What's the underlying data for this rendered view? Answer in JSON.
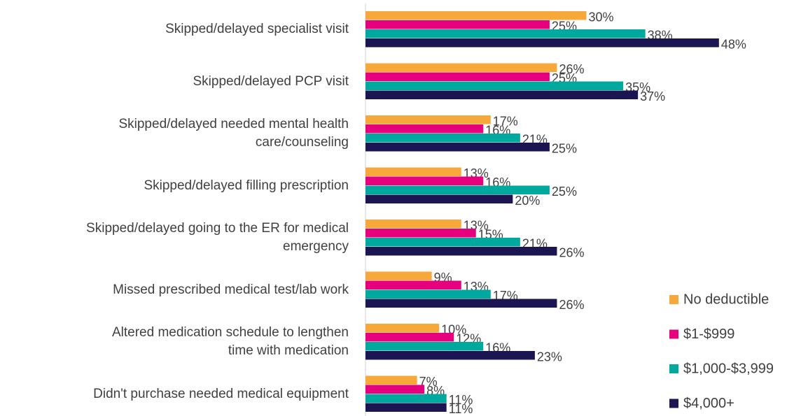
{
  "chart_data": {
    "type": "hbar",
    "categories": [
      "Skipped/delayed specialist visit",
      "Skipped/delayed PCP visit",
      "Skipped/delayed needed mental health\ncare/counseling",
      "Skipped/delayed filling prescription",
      "Skipped/delayed going to the ER for medical\nemergency",
      "Missed prescribed medical test/lab work",
      "Altered medication schedule to lengthen\ntime with medication",
      "Didn't purchase needed medical equipment"
    ],
    "series": [
      {
        "name": "No deductible",
        "color": "#f7a83b",
        "values": [
          30,
          26,
          17,
          13,
          13,
          9,
          10,
          7
        ],
        "value_labels": [
          "30%",
          "26%",
          "17%",
          "13%",
          "13%",
          "9%",
          "10%",
          "7%"
        ]
      },
      {
        "name": "$1-$999",
        "color": "#e6007e",
        "values": [
          25,
          25,
          16,
          16,
          15,
          13,
          12,
          8
        ],
        "value_labels": [
          "25%",
          "25%",
          "16%",
          "16%",
          "15%",
          "13%",
          "12%",
          "8%"
        ]
      },
      {
        "name": "$1,000-$3,999",
        "color": "#00a99d",
        "values": [
          38,
          35,
          21,
          25,
          21,
          17,
          16,
          11
        ],
        "value_labels": [
          "38%",
          "35%",
          "21%",
          "25%",
          "21%",
          "17%",
          "16%",
          "11%"
        ]
      },
      {
        "name": "$4,000+",
        "color": "#1b1651",
        "values": [
          48,
          37,
          25,
          20,
          26,
          26,
          23,
          11
        ],
        "value_labels": [
          "48%",
          "37%",
          "25%",
          "20%",
          "26%",
          "26%",
          "23%",
          "11%"
        ]
      }
    ],
    "xlim": [
      0,
      58
    ],
    "legend": "right"
  }
}
